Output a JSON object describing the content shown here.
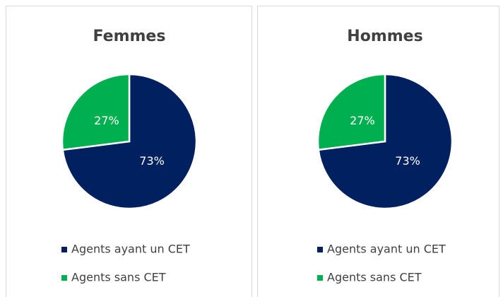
{
  "chart_data": [
    {
      "type": "pie",
      "title": "Femmes",
      "categories": [
        "Agents ayant un CET",
        "Agents sans CET"
      ],
      "values": [
        73,
        27
      ],
      "value_labels": [
        "73%",
        "27%"
      ],
      "colors": [
        "#002060",
        "#00b050"
      ]
    },
    {
      "type": "pie",
      "title": "Hommes",
      "categories": [
        "Agents ayant un CET",
        "Agents sans CET"
      ],
      "values": [
        73,
        27
      ],
      "value_labels": [
        "73%",
        "27%"
      ],
      "colors": [
        "#002060",
        "#00b050"
      ]
    }
  ]
}
